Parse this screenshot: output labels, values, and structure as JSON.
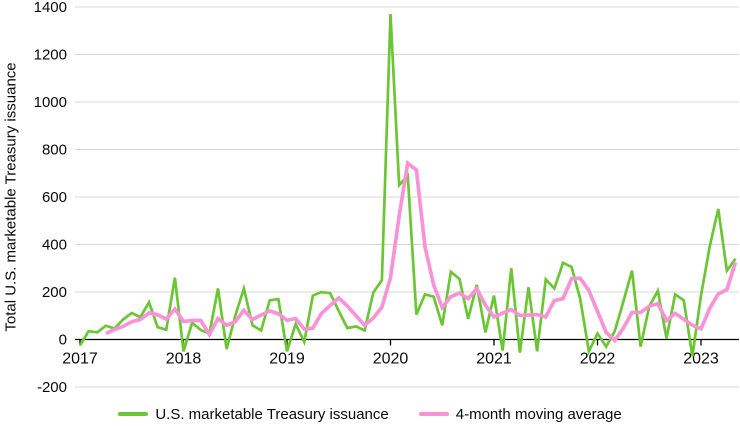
{
  "chart_data": {
    "type": "line",
    "title": "",
    "xlabel": "",
    "ylabel": "Total U.S. marketable Treasury issuance",
    "ylim": [
      -200,
      1400
    ],
    "y_ticks": [
      -200,
      0,
      200,
      400,
      600,
      800,
      1000,
      1200,
      1400
    ],
    "x_tick_labels": [
      "2017",
      "2018",
      "2019",
      "2020",
      "2021",
      "2022",
      "2023"
    ],
    "x_unit": "month",
    "x_start": "2017-01",
    "x_end": "2023-05",
    "grid": "horizontal",
    "legend_position": "bottom",
    "grid_color": "#d9d9d9",
    "axis_color": "#000000",
    "text_color": "#0a0a0a",
    "series": [
      {
        "name": "U.S. marketable Treasury issuance",
        "color": "#6cc534",
        "line_width": 2.7,
        "start_index": 0,
        "values": [
          -25,
          35,
          30,
          58,
          46,
          84,
          112,
          94,
          157,
          52,
          41,
          260,
          -50,
          70,
          40,
          25,
          215,
          -40,
          100,
          215,
          60,
          38,
          165,
          170,
          -50,
          65,
          -10,
          185,
          200,
          195,
          120,
          48,
          55,
          38,
          197,
          250,
          1370,
          650,
          690,
          105,
          190,
          180,
          60,
          285,
          255,
          87,
          230,
          30,
          185,
          -46,
          300,
          -55,
          220,
          -50,
          253,
          215,
          323,
          305,
          170,
          -50,
          25,
          -30,
          35,
          160,
          290,
          -30,
          140,
          205,
          5,
          190,
          165,
          -70,
          185,
          390,
          550,
          290,
          340
        ]
      },
      {
        "name": "4-month moving average",
        "color": "#f893d7",
        "line_width": 3.7,
        "start_index": 3,
        "values": [
          25,
          42,
          55,
          75,
          84,
          112,
          104,
          86,
          128,
          76,
          80,
          80,
          21,
          88,
          60,
          75,
          123,
          84,
          103,
          120,
          108,
          81,
          88,
          44,
          48,
          110,
          143,
          175,
          141,
          100,
          60,
          90,
          136,
          260,
          520,
          742,
          714,
          390,
          230,
          135,
          180,
          196,
          172,
          214,
          145,
          95,
          111,
          126,
          101,
          103,
          105,
          95,
          164,
          172,
          256,
          258,
          206,
          118,
          30,
          -4,
          48,
          114,
          114,
          140,
          151,
          80,
          110,
          85,
          60,
          45,
          130,
          192,
          210,
          325
        ]
      }
    ]
  }
}
